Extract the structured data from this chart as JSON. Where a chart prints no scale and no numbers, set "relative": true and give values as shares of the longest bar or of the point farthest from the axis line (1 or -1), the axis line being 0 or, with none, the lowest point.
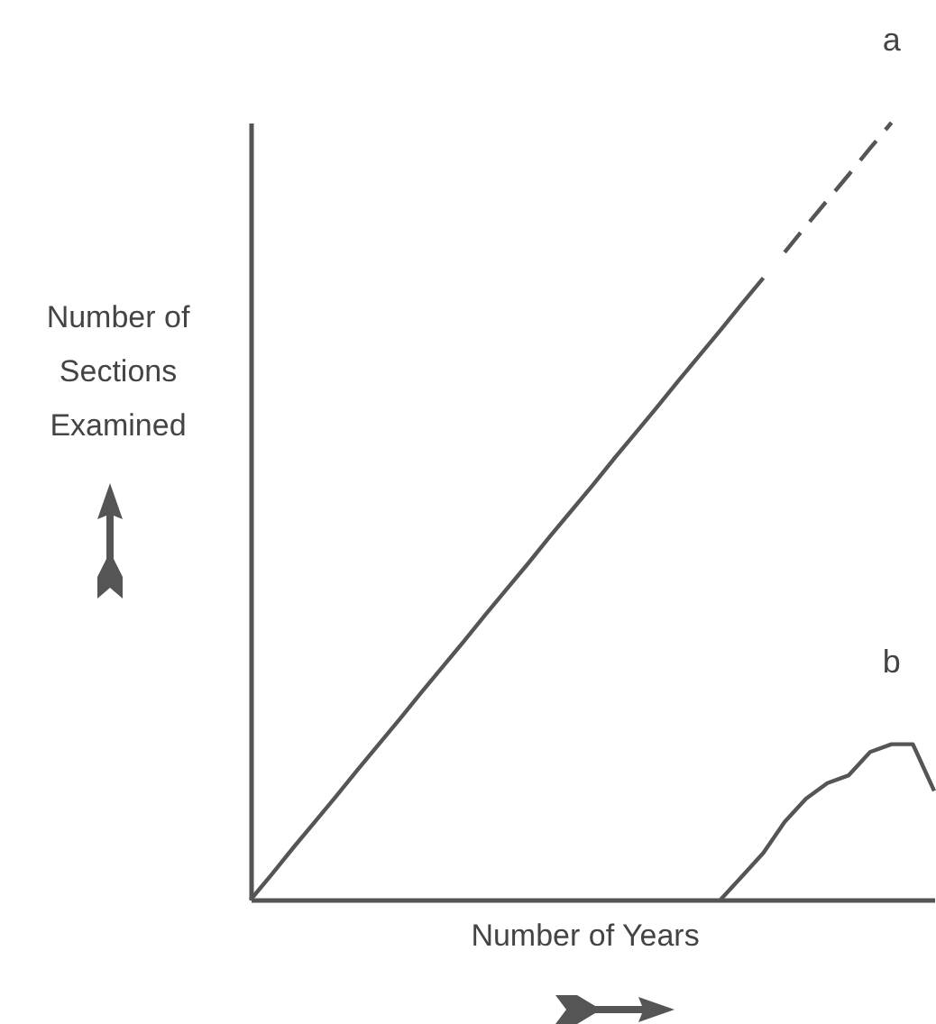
{
  "chart_data": {
    "type": "line",
    "relative": true,
    "xlabel": "Number of Years",
    "ylabel": "Number of\nSections\nExamined",
    "categories": [
      null,
      null,
      null,
      null,
      null,
      null,
      null,
      null,
      null,
      null,
      null,
      null,
      null,
      null,
      null,
      null,
      null,
      null,
      null,
      null,
      null,
      null,
      null,
      null,
      null,
      null,
      null,
      null,
      null,
      null,
      null,
      null,
      null
    ],
    "series": [
      {
        "color": "#555555",
        "line_style": "solid",
        "values": [
          0,
          0.033,
          0.067,
          0.1,
          0.133,
          0.167,
          0.2,
          0.233,
          0.267,
          0.3,
          0.333,
          0.367,
          0.4,
          0.433,
          0.467,
          0.5,
          0.533,
          0.567,
          0.6,
          0.633,
          0.667,
          0.7,
          0.733,
          0.767,
          0.8,
          null,
          null,
          null,
          null,
          null,
          null,
          null,
          null
        ]
      },
      {
        "name": "a",
        "color": "#555555",
        "line_style": "dashed",
        "values": [
          null,
          null,
          null,
          null,
          null,
          null,
          null,
          null,
          null,
          null,
          null,
          null,
          null,
          null,
          null,
          null,
          null,
          null,
          null,
          null,
          null,
          null,
          null,
          null,
          null,
          0.833,
          0.867,
          0.9,
          0.933,
          0.967,
          1,
          null,
          null
        ]
      },
      {
        "name": "b",
        "color": "#555555",
        "line_style": "solid",
        "values": [
          null,
          null,
          null,
          null,
          null,
          null,
          null,
          null,
          null,
          null,
          null,
          null,
          null,
          null,
          null,
          null,
          null,
          null,
          null,
          null,
          null,
          null,
          0,
          0.03,
          0.06,
          0.1,
          0.13,
          0.15,
          0.16,
          0.19,
          0.2,
          0.2,
          0.14
        ]
      }
    ],
    "marker": "none",
    "grid": false
  }
}
